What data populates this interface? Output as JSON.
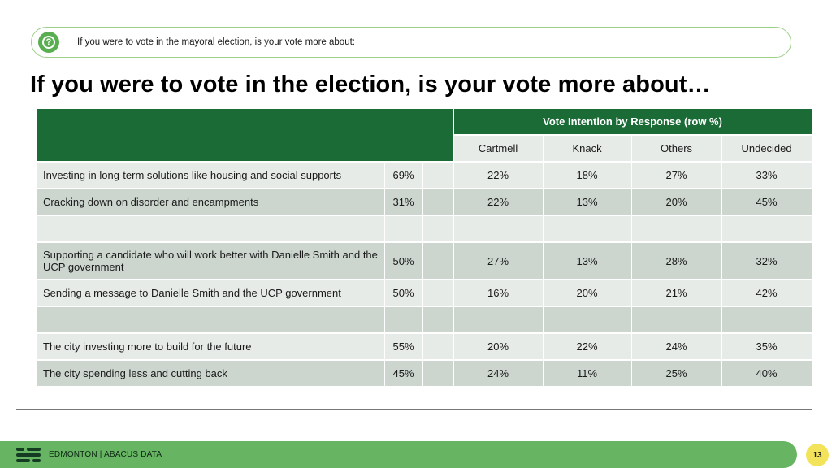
{
  "question": {
    "icon": "question-mark-icon",
    "text": "If you were to vote in the mayoral election, is your vote more about:"
  },
  "title": "If you were to vote in the election, is your vote more about…",
  "table": {
    "group_header": "Vote Intention by Response (row %)",
    "columns": [
      "Cartmell",
      "Knack",
      "Others",
      "Undecided"
    ],
    "rows": [
      {
        "label": "Investing in long-term solutions like housing and social supports",
        "total": "69%",
        "values": [
          "22%",
          "18%",
          "27%",
          "33%"
        ]
      },
      {
        "label": "Cracking down on disorder and encampments",
        "total": "31%",
        "values": [
          "22%",
          "13%",
          "20%",
          "45%"
        ]
      },
      {
        "label": "",
        "total": "",
        "values": [
          "",
          "",
          "",
          ""
        ]
      },
      {
        "label": "Supporting a candidate who will work better with Danielle Smith and the UCP government",
        "total": "50%",
        "values": [
          "27%",
          "13%",
          "28%",
          "32%"
        ]
      },
      {
        "label": "Sending a message to Danielle Smith and the UCP government",
        "total": "50%",
        "values": [
          "16%",
          "20%",
          "21%",
          "42%"
        ]
      },
      {
        "label": "",
        "total": "",
        "values": [
          "",
          "",
          "",
          ""
        ]
      },
      {
        "label": "The city investing more to build for the future",
        "total": "55%",
        "values": [
          "20%",
          "22%",
          "24%",
          "35%"
        ]
      },
      {
        "label": "The city spending less and cutting back",
        "total": "45%",
        "values": [
          "24%",
          "11%",
          "25%",
          "40%"
        ]
      }
    ]
  },
  "footer": {
    "logo_icon": "abacus-logo-icon",
    "text": "EDMONTON  |  ABACUS DATA",
    "page_number": "13"
  },
  "colors": {
    "header_green": "#1b6b37",
    "footer_green": "#67b462",
    "badge_yellow": "#f3e35a",
    "row_light": "#e7ebe7",
    "row_dark": "#ccd6cf"
  }
}
